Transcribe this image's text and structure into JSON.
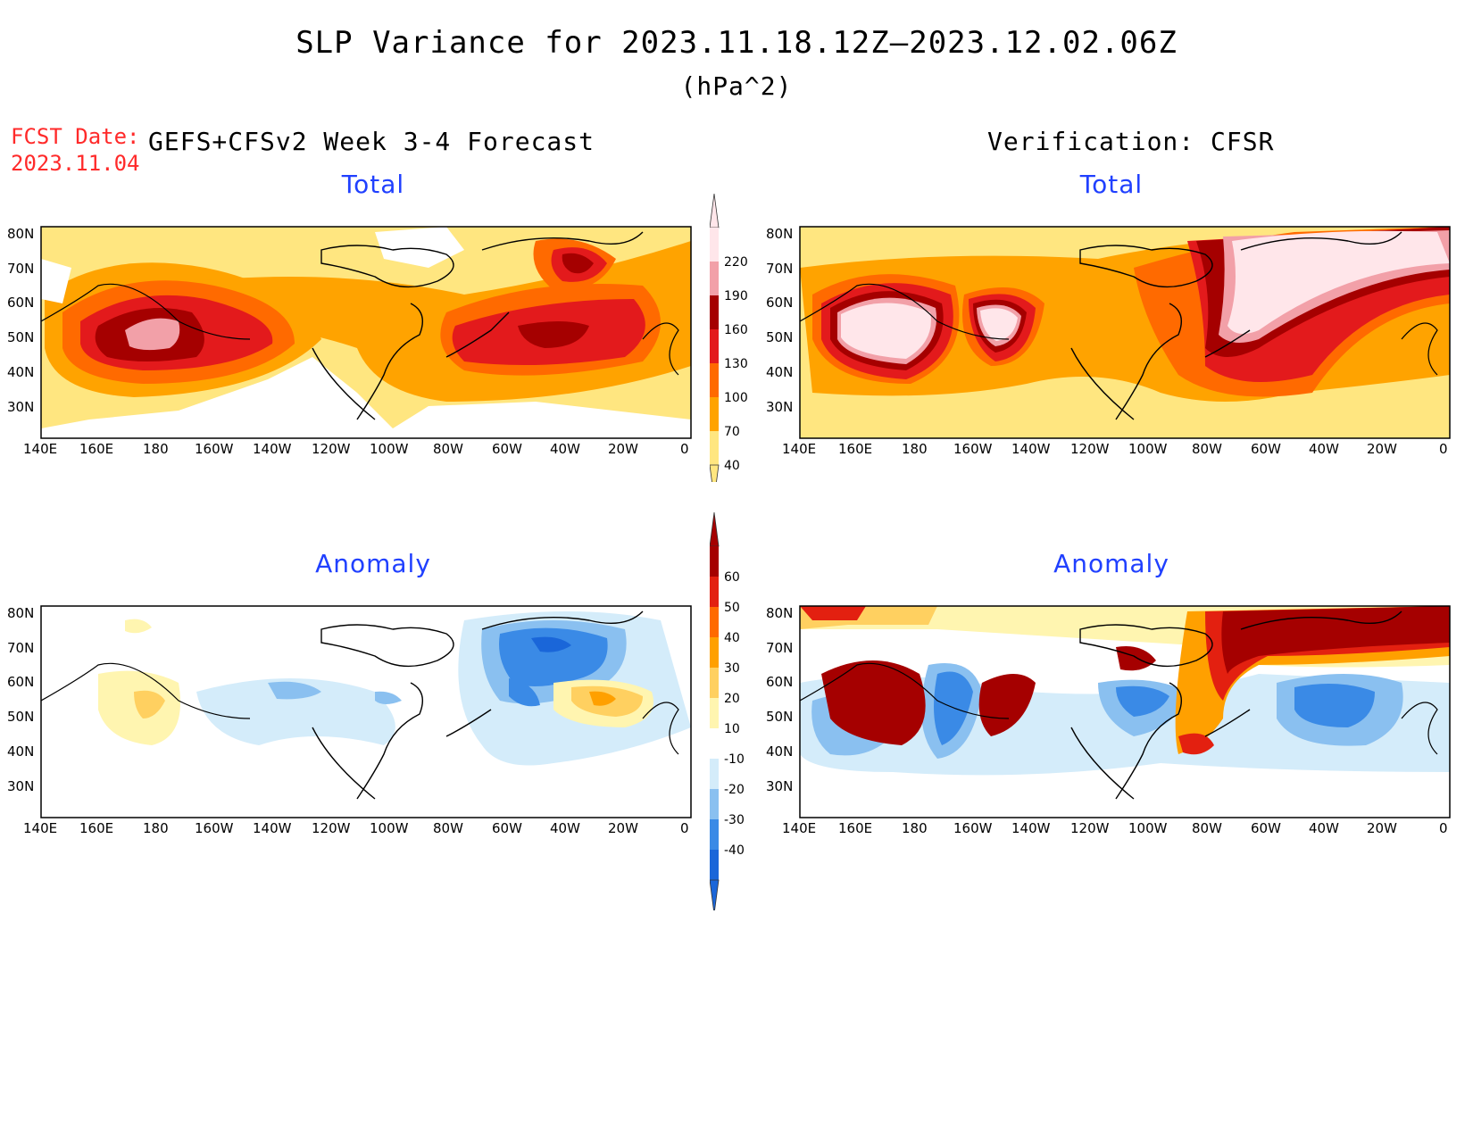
{
  "header": {
    "title": "SLP Variance for 2023.11.18.12Z—2023.12.02.06Z",
    "units": "(hPa^2)",
    "fcst_label": "FCST Date:",
    "fcst_date": "2023.11.04",
    "model": "GEFS+CFSv2 Week 3-4 Forecast",
    "verification": "Verification: CFSR"
  },
  "panels": {
    "forecast_total": "Total",
    "verif_total": "Total",
    "forecast_anomaly": "Anomaly",
    "verif_anomaly": "Anomaly"
  },
  "axes": {
    "lat_labels": [
      "80N",
      "70N",
      "60N",
      "50N",
      "40N",
      "30N"
    ],
    "lon_labels": [
      "140E",
      "160E",
      "180",
      "160W",
      "140W",
      "120W",
      "100W",
      "80W",
      "60W",
      "40W",
      "20W",
      "0"
    ]
  },
  "total_colorbar": {
    "levels": [
      "40",
      "70",
      "100",
      "130",
      "160",
      "190",
      "220"
    ],
    "colors": [
      "#ffe680",
      "#ffa300",
      "#ff6a00",
      "#e31a1c",
      "#a50000",
      "#f2a0a8",
      "#ffe6ea"
    ]
  },
  "anomaly_colorbar": {
    "levels": [
      "-40",
      "-30",
      "-20",
      "-10",
      "10",
      "20",
      "30",
      "40",
      "50",
      "60"
    ],
    "colors": [
      "#1a66d9",
      "#3a8ae6",
      "#8ac0f0",
      "#d4ecfa",
      "#ffffff",
      "#fff5b0",
      "#ffd060",
      "#ffa000",
      "#ff6a00",
      "#e32010",
      "#a50000"
    ]
  }
}
